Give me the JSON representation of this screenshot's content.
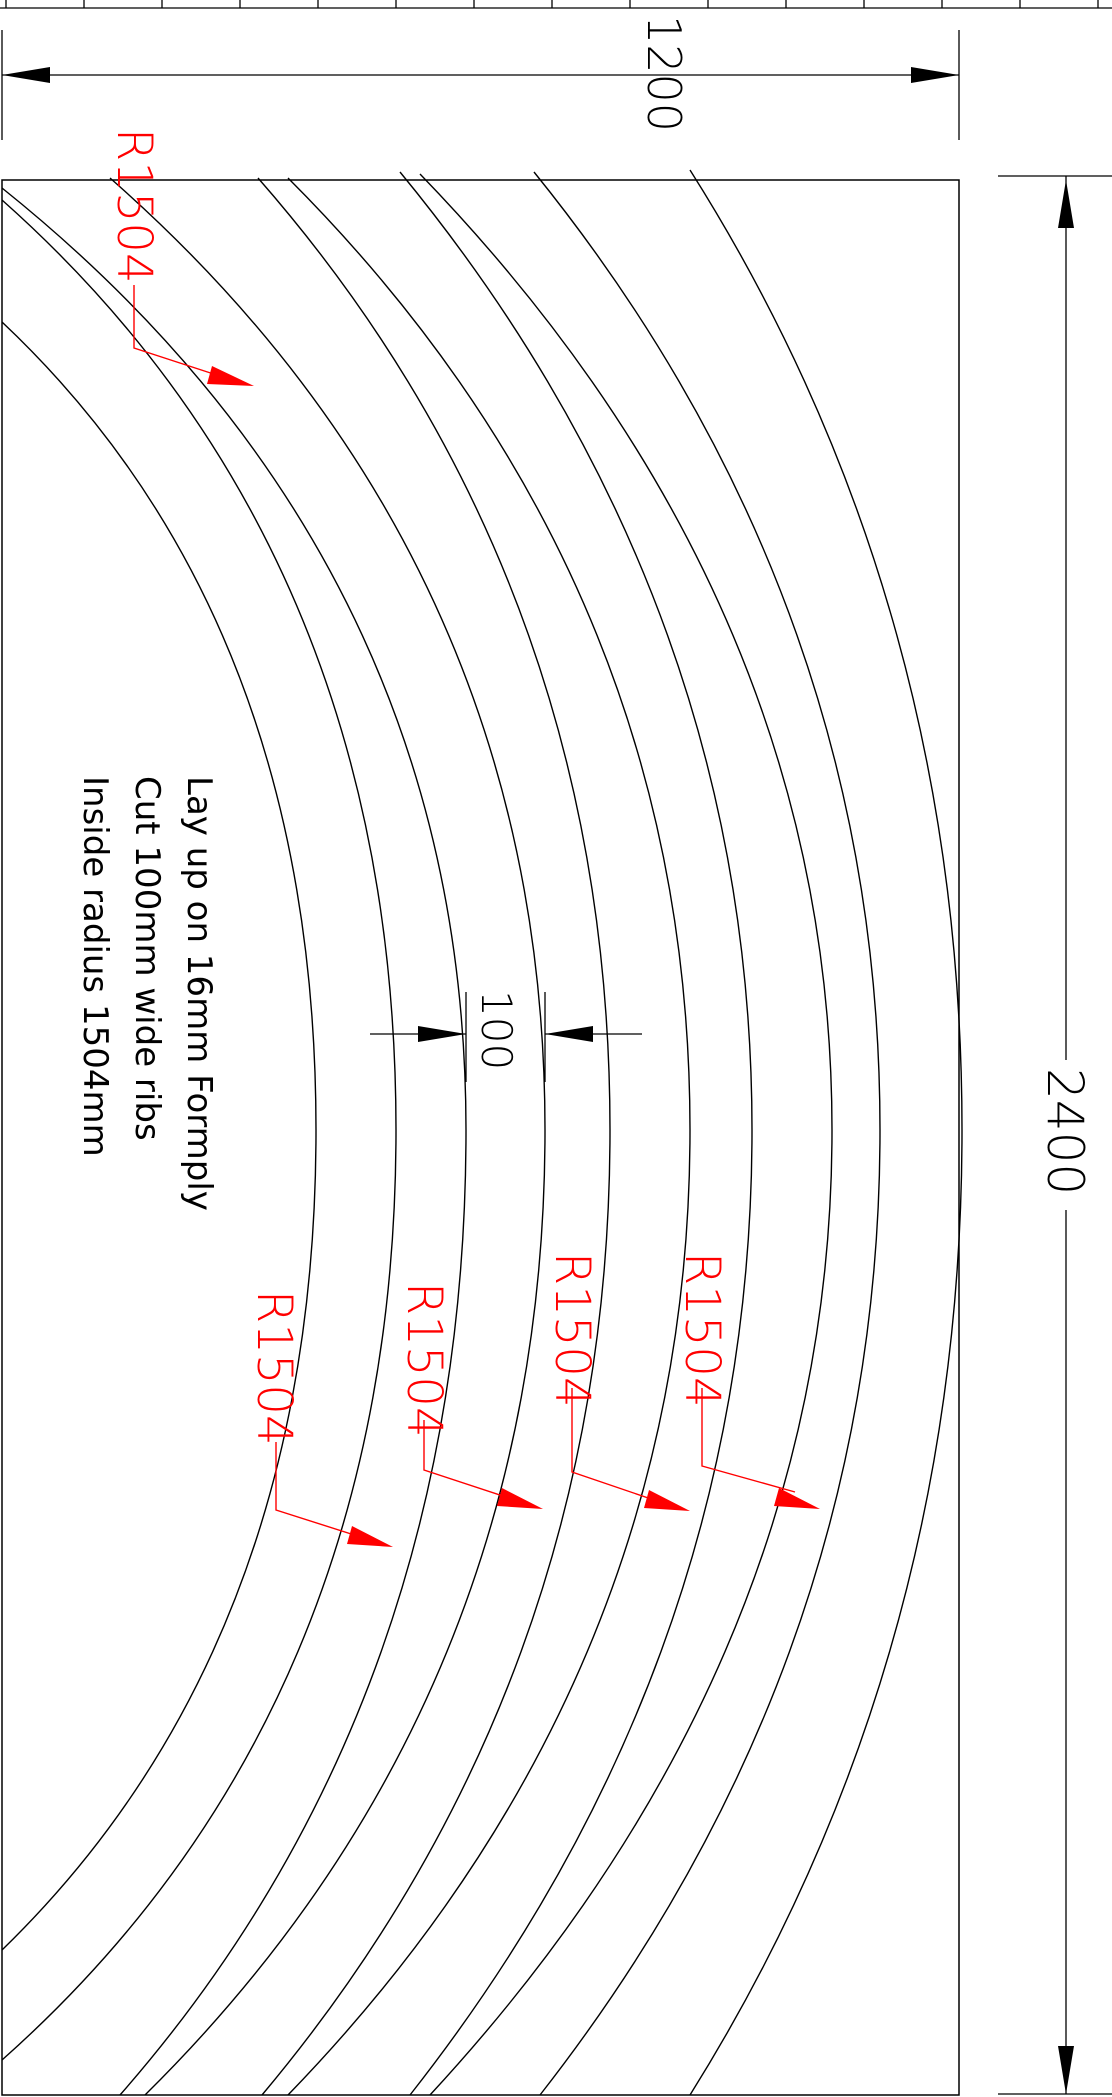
{
  "drawing": {
    "colors": {
      "geometry": "#000000",
      "annotation": "#ff0000",
      "background": "#ffffff"
    },
    "dimensions": {
      "overall_width": "1200",
      "overall_height": "2400",
      "rib_width": "100"
    },
    "radius_labels": [
      "R1504",
      "R1504",
      "R1504",
      "R1504",
      "R1504"
    ],
    "notes": [
      "Lay up on 16mm Formply",
      "Cut 100mm wide ribs",
      "Inside radius 1504mm"
    ],
    "icons": [
      "arrowhead-icon"
    ]
  }
}
